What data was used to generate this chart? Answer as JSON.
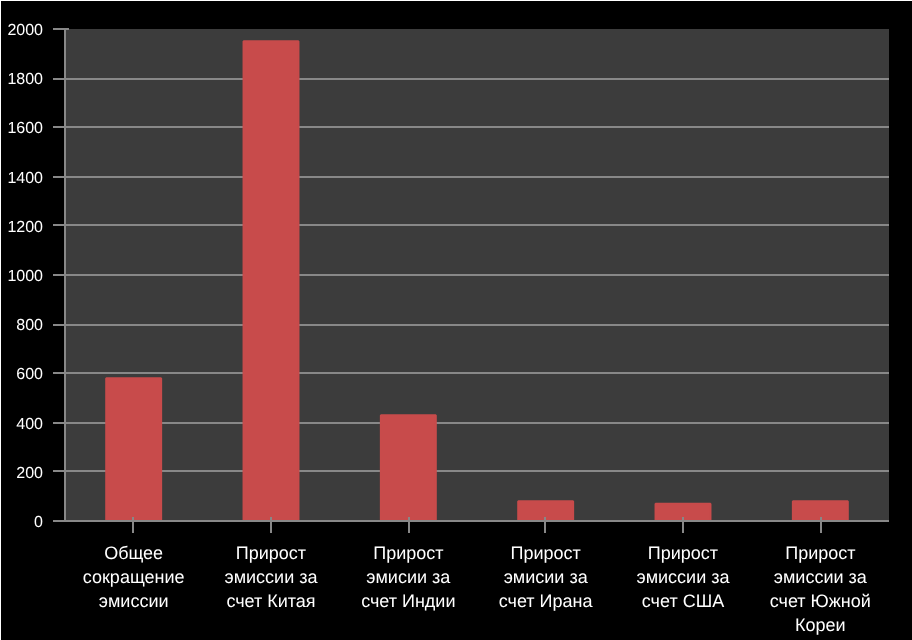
{
  "chart_data": {
    "type": "bar",
    "categories": [
      "Общее сокращение эмиссии",
      "Прирост эмиссии за счет Китая",
      "Прирост эмисии за счет Индии",
      "Прирост эмисии за счет Ирана",
      "Прирост эмиссии за счет США",
      "Прирост эмиссии за счет Южной Кореи"
    ],
    "values": [
      580,
      1950,
      430,
      80,
      70,
      80
    ],
    "color": "#c84b4b",
    "ylim": [
      0,
      2000
    ],
    "yticks": [
      0,
      200,
      400,
      600,
      800,
      1000,
      1200,
      1400,
      1600,
      1800,
      2000
    ],
    "grid": "y"
  }
}
